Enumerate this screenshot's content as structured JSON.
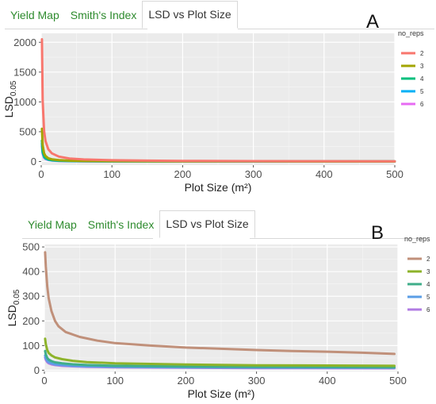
{
  "panels": [
    {
      "id": "A",
      "letter": "A",
      "tabs": [
        {
          "label": "Yield Map",
          "active": false
        },
        {
          "label": "Smith's Index",
          "active": false
        },
        {
          "label": "LSD vs Plot Size",
          "active": true
        }
      ],
      "chart_data": {
        "type": "line",
        "xlabel": "Plot Size (m²)",
        "ylabel": "LSD",
        "ylabel_subscript": "0.05",
        "xlim": [
          0,
          500
        ],
        "ylim": [
          -60,
          2150
        ],
        "xticks": [
          0,
          100,
          200,
          300,
          400,
          500
        ],
        "yticks": [
          0,
          500,
          1000,
          1500,
          2000
        ],
        "grid": true,
        "background": "#ebebeb",
        "legend": {
          "title": "no_reps",
          "placement": "right"
        },
        "series": [
          {
            "name": "2",
            "color": "#f8766d",
            "points": [
              [
                1,
                2050
              ],
              [
                2,
                1030
              ],
              [
                4,
                515
              ],
              [
                6,
                343
              ],
              [
                10,
                206
              ],
              [
                15,
                137
              ],
              [
                25,
                82
              ],
              [
                40,
                51
              ],
              [
                60,
                34
              ],
              [
                100,
                21
              ],
              [
                150,
                14
              ],
              [
                200,
                10
              ],
              [
                300,
                7
              ],
              [
                400,
                5
              ],
              [
                500,
                4
              ]
            ]
          },
          {
            "name": "3",
            "color": "#a3a500",
            "points": [
              [
                1,
                550
              ],
              [
                2,
                275
              ],
              [
                4,
                138
              ],
              [
                6,
                92
              ],
              [
                10,
                55
              ],
              [
                15,
                37
              ],
              [
                25,
                22
              ],
              [
                40,
                14
              ],
              [
                60,
                9
              ],
              [
                100,
                6
              ],
              [
                200,
                3
              ],
              [
                300,
                2
              ],
              [
                500,
                1
              ]
            ]
          },
          {
            "name": "4",
            "color": "#00bf7d",
            "points": [
              [
                1,
                350
              ],
              [
                2,
                175
              ],
              [
                4,
                88
              ],
              [
                6,
                58
              ],
              [
                10,
                35
              ],
              [
                15,
                23
              ],
              [
                25,
                14
              ],
              [
                40,
                9
              ],
              [
                60,
                6
              ],
              [
                100,
                4
              ],
              [
                200,
                2
              ],
              [
                500,
                1
              ]
            ]
          },
          {
            "name": "5",
            "color": "#00b0f6",
            "points": [
              [
                1,
                300
              ],
              [
                2,
                150
              ],
              [
                4,
                75
              ],
              [
                6,
                50
              ],
              [
                10,
                30
              ],
              [
                15,
                20
              ],
              [
                25,
                12
              ],
              [
                40,
                8
              ],
              [
                60,
                5
              ],
              [
                100,
                3
              ],
              [
                200,
                2
              ],
              [
                500,
                1
              ]
            ]
          },
          {
            "name": "6",
            "color": "#e76bf3",
            "points": [
              [
                1,
                260
              ],
              [
                2,
                130
              ],
              [
                4,
                65
              ],
              [
                6,
                43
              ],
              [
                10,
                26
              ],
              [
                15,
                17
              ],
              [
                25,
                10
              ],
              [
                40,
                7
              ],
              [
                60,
                4
              ],
              [
                100,
                3
              ],
              [
                200,
                1
              ],
              [
                500,
                1
              ]
            ]
          }
        ]
      }
    },
    {
      "id": "B",
      "letter": "B",
      "tabs": [
        {
          "label": "Yield Map",
          "active": false
        },
        {
          "label": "Smith's Index",
          "active": false
        },
        {
          "label": "LSD vs Plot Size",
          "active": true
        }
      ],
      "chart_data": {
        "type": "line",
        "xlabel": "Plot Size (m²)",
        "ylabel": "LSD",
        "ylabel_subscript": "0.05",
        "xlim": [
          0,
          500
        ],
        "ylim": [
          -5,
          510
        ],
        "xticks": [
          0,
          100,
          200,
          300,
          400,
          500
        ],
        "yticks": [
          0,
          100,
          200,
          300,
          400,
          500
        ],
        "grid": true,
        "background": "#ebebeb",
        "legend": {
          "title": "no_reps",
          "placement": "right"
        },
        "series": [
          {
            "name": "2",
            "color": "#c0907a",
            "points": [
              [
                1,
                478
              ],
              [
                2,
                420
              ],
              [
                4,
                340
              ],
              [
                6,
                292
              ],
              [
                10,
                240
              ],
              [
                15,
                200
              ],
              [
                20,
                178
              ],
              [
                30,
                155
              ],
              [
                50,
                135
              ],
              [
                75,
                120
              ],
              [
                100,
                110
              ],
              [
                150,
                100
              ],
              [
                200,
                92
              ],
              [
                250,
                87
              ],
              [
                300,
                82
              ],
              [
                350,
                78
              ],
              [
                400,
                75
              ],
              [
                450,
                71
              ],
              [
                495,
                66
              ]
            ]
          },
          {
            "name": "3",
            "color": "#8db32a",
            "points": [
              [
                1,
                128
              ],
              [
                2,
                105
              ],
              [
                4,
                82
              ],
              [
                6,
                70
              ],
              [
                10,
                60
              ],
              [
                15,
                52
              ],
              [
                25,
                45
              ],
              [
                40,
                38
              ],
              [
                60,
                33
              ],
              [
                100,
                28
              ],
              [
                200,
                23
              ],
              [
                300,
                20
              ],
              [
                400,
                19
              ],
              [
                495,
                18
              ]
            ]
          },
          {
            "name": "4",
            "color": "#3fae8a",
            "points": [
              [
                1,
                78
              ],
              [
                2,
                64
              ],
              [
                4,
                50
              ],
              [
                6,
                43
              ],
              [
                10,
                37
              ],
              [
                15,
                32
              ],
              [
                25,
                28
              ],
              [
                40,
                24
              ],
              [
                60,
                21
              ],
              [
                100,
                18
              ],
              [
                200,
                15
              ],
              [
                300,
                14
              ],
              [
                400,
                13
              ],
              [
                495,
                12
              ]
            ]
          },
          {
            "name": "5",
            "color": "#5b9ee6",
            "points": [
              [
                1,
                60
              ],
              [
                2,
                49
              ],
              [
                4,
                38
              ],
              [
                6,
                33
              ],
              [
                10,
                28
              ],
              [
                15,
                24
              ],
              [
                25,
                21
              ],
              [
                40,
                18
              ],
              [
                60,
                16
              ],
              [
                100,
                14
              ],
              [
                200,
                12
              ],
              [
                300,
                11
              ],
              [
                495,
                10
              ]
            ]
          },
          {
            "name": "6",
            "color": "#b17be3",
            "points": [
              [
                1,
                52
              ],
              [
                2,
                42
              ],
              [
                4,
                33
              ],
              [
                6,
                28
              ],
              [
                10,
                24
              ],
              [
                15,
                21
              ],
              [
                25,
                18
              ],
              [
                40,
                16
              ],
              [
                60,
                14
              ],
              [
                100,
                12
              ],
              [
                200,
                10
              ],
              [
                300,
                9
              ],
              [
                495,
                8
              ]
            ]
          }
        ]
      }
    }
  ]
}
